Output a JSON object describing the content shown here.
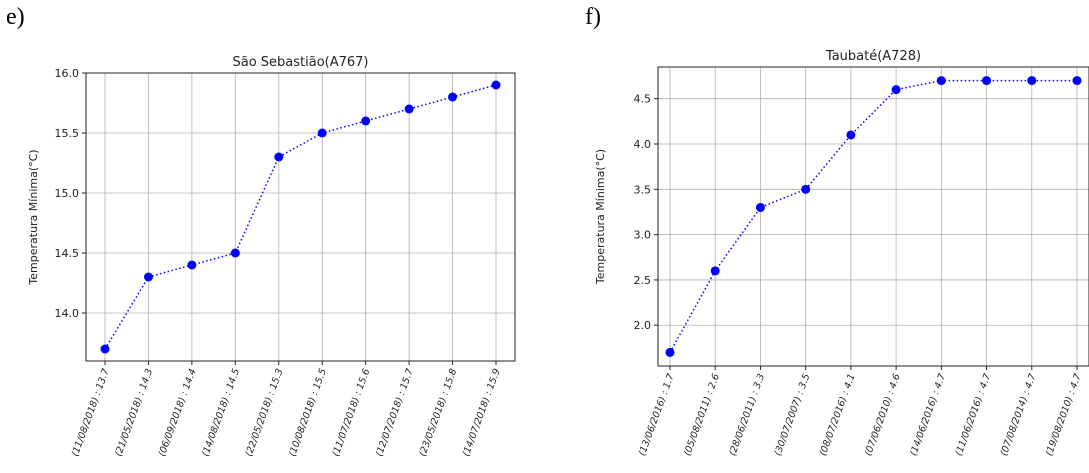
{
  "panels": [
    {
      "letter": "e)"
    },
    {
      "letter": "f)"
    }
  ],
  "chart_data": [
    {
      "type": "line",
      "title": "São Sebastião(A767)",
      "ylabel": "Temperatura Mínima(°C)",
      "xlabel": "",
      "ylim": [
        13.6,
        16.0
      ],
      "yticks": [
        14.0,
        14.5,
        15.0,
        15.5,
        16.0
      ],
      "ytick_labels": [
        "14.0",
        "14.5",
        "15.0",
        "15.5",
        "16.0"
      ],
      "categories": [
        "(11/08/2018) : 13.7",
        "(21/05/2018) : 14.3",
        "(06/09/2018) : 14.4",
        "(14/08/2018) : 14.5",
        "(22/05/2018) : 15.3",
        "(10/08/2018) : 15.5",
        "(11/07/2018) : 15.6",
        "(12/07/2018) : 15.7",
        "(23/05/2018) : 15.8",
        "(14/07/2018) : 15.9"
      ],
      "values": [
        13.7,
        14.3,
        14.4,
        14.5,
        15.3,
        15.5,
        15.6,
        15.7,
        15.8,
        15.9
      ],
      "color": "#0000ff",
      "grid": true
    },
    {
      "type": "line",
      "title": "Taubaté(A728)",
      "ylabel": "Temperatura Mínima(°C)",
      "xlabel": "",
      "ylim": [
        1.55,
        4.85
      ],
      "yticks": [
        2.0,
        2.5,
        3.0,
        3.5,
        4.0,
        4.5
      ],
      "ytick_labels": [
        "2.0",
        "2.5",
        "3.0",
        "3.5",
        "4.0",
        "4.5"
      ],
      "categories": [
        "(13/06/2016) : 1.7",
        "(05/08/2011) : 2.6",
        "(28/06/2011) : 3.3",
        "(30/07/2007) : 3.5",
        "(08/07/2016) : 4.1",
        "(07/06/2010) : 4.6",
        "(14/06/2016) : 4.7",
        "(11/06/2016) : 4.7",
        "(07/08/2014) : 4.7",
        "(19/08/2010) : 4.7"
      ],
      "values": [
        1.7,
        2.6,
        3.3,
        3.5,
        4.1,
        4.6,
        4.7,
        4.7,
        4.7,
        4.7
      ],
      "color": "#0000ff",
      "grid": true
    }
  ]
}
